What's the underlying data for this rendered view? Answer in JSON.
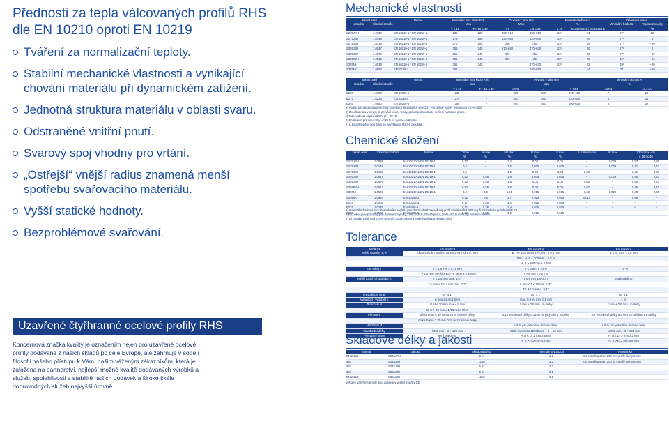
{
  "left": {
    "title_line1": "Přednosti za tepla válcovaných profilů RHS",
    "title_line2": "dle EN 10210 oproti EN 10219",
    "bullets": [
      "Tváření za normalizační teploty.",
      "Stabilní mechanické vlastnosti a vynikající chování materiálu při dynamickém zatížení.",
      "Jednotná struktura materiálu v oblasti svaru.",
      "Odstraněné vnitřní pnutí.",
      "Svarový spoj vhodný pro vrtání.",
      "„Ostřejší“ vnější radius znamená menší spotřebu svařovacího materiálu.",
      "Vyšší statické hodnoty.",
      "Bezproblémové svařování."
    ],
    "banner": "Uzavřené čtyřhranné ocelové profily RHS",
    "banner_text": "Koncernová značka kvality je označením nejen pro uzavřené ocelové profily dodávané z našich skladů po celé Evropě, ale zahrnuje v sobě i filosofii našeho přístupu k Vám, našim váženým zákazníkům, která je založena na partnerství, nejlepší možné kvalitě dodávaných výrobků a služeb, spolehlivosti a stabilitě našich dodávek a široké škále doprovodných služeb nejvyšší úrovně."
  },
  "mech": {
    "title": "Mechanické vlastnosti",
    "t1_head1": [
      "Jakost oceli",
      "Norma",
      "Minimální mez kluzu Reh",
      "Pevnost v tahu Rm",
      "Minimální tažnost A",
      "Nárazová práce"
    ],
    "t1_head2": [
      "Značka",
      "Číselné označení",
      "",
      "Mpa",
      "Mpa",
      "%",
      "Minimální hodnota",
      "Teplota zkoušky"
    ],
    "t1_head3": [
      "",
      "",
      "",
      "T ≤ 16",
      "T > 16 ≤ 40",
      "< 3",
      "≥ 3 ≤ 40",
      "≤ 40",
      "EN 10210-1 | EN 10219-1",
      "J",
      "°C"
    ],
    "t1_rows": [
      [
        "S235JRH",
        "1.0039",
        "EN 10210-1 / EN 10219-1",
        "235",
        "225",
        "360–510",
        "360–510",
        "26¹",
        "24",
        "27²",
        "20"
      ],
      [
        "S275J0H",
        "1.0149",
        "EN 10210-1 / EN 10219-1",
        "275",
        "265",
        "430–580",
        "410–560",
        "23¹",
        "20",
        "27²",
        "0"
      ],
      [
        "S275J2H",
        "1.0138",
        "EN 10210-1 / EN 10219-1",
        "275",
        "265",
        "dtto",
        "dtto",
        "23¹",
        "20",
        "27²",
        "−20"
      ],
      [
        "S355J0H",
        "1.0547",
        "EN 10210-1 / EN 10219-1",
        "355",
        "345",
        "510–680",
        "470–630",
        "22¹",
        "20",
        "27²",
        "0"
      ],
      [
        "S355J2H",
        "1.0576",
        "EN 10210-1 / EN 10219-1",
        "355",
        "345",
        "dtto",
        "dtto",
        "22¹",
        "20",
        "27²",
        "−20"
      ],
      [
        "S355K2H",
        "1.0512",
        "EN 10210-1 / EN 10219-1",
        "355",
        "345",
        "dtto",
        "dtto",
        "22¹",
        "20",
        "40²",
        "−20"
      ],
      [
        "S355NH",
        "1.0539",
        "EN 10210-1 / EN 10219-1",
        "355",
        "345",
        "",
        "470–630",
        "22¹",
        "22",
        "40²",
        "−20"
      ],
      [
        "S355MC",
        "1.0984",
        "EN10149-2",
        "355",
        "",
        "",
        "430–550",
        "",
        "14",
        "27",
        "−20"
      ]
    ],
    "t2_head1": [
      "Jakost oceli",
      "Norma",
      "Minimální mez kluzu Reh",
      "Pevnost v tahu Rm",
      "Minimální tažnost A"
    ],
    "t2_head2": [
      "Značka",
      "Číselné označení",
      "",
      "Mpa",
      "Mpa",
      "%"
    ],
    "t2_head3": [
      "",
      "",
      "",
      "T ≤ 16",
      "T > 16 ≤ 40",
      "≤CR1",
      "≤",
      "> CR1",
      "≤CR1",
      "≤A / ≤A"
    ],
    "t2_rows": [
      [
        "E235",
        "1.0308",
        "EN 10305-5",
        "235",
        "–",
        "390",
        "315",
        "340–480",
        "7",
        "25"
      ],
      [
        "E275",
        "1.0225",
        "EN10305-5",
        "275",
        "–",
        "440",
        "390",
        "410–550",
        "6",
        "21"
      ],
      [
        "E355",
        "1.0580",
        "EN 10305-5",
        "355",
        "–",
        "540",
        "490",
        "490–630",
        "5",
        "22"
      ]
    ],
    "notes": [
      "a) Platí pro hodnoty stanovené na podélných zkušebních vzorcích. Pro příčné vzorky je hodnota o 2 % nižší.",
      "b) Zkouška rázu v ohybu se provádí pouze tehdy, pokud je dohodnuto ověření nárazové práce.",
      "c) Tato hodnota odpovídá 27J při −30 °C.",
      "d) Podélné či příčné vzorky – záleží na výrobci materiálu.",
      "e) U tloušťky stěny pod 6mm se nevyžaduje rázová zkouška."
    ]
  },
  "chem": {
    "title": "Chemické složení",
    "head": [
      "Jakost oceli",
      "Číselné označení",
      "Norma",
      "C max",
      "Si max",
      "Mn max",
      "P max",
      "S max",
      "Al celkem min",
      "N² max",
      "CEV max = %"
    ],
    "head2": [
      "",
      "",
      "",
      "%",
      "%",
      "%",
      "%",
      "%",
      "",
      "",
      "≤ 16 | ≤ 40"
    ],
    "rows": [
      [
        "S235JRH",
        "1.0039",
        "EN 10210-1/EN 10219-1",
        "0,17",
        "–",
        "1,4",
        "0,04",
        "0,04",
        "–",
        "0,009",
        "0,37",
        "0,39"
      ],
      [
        "S275J0H",
        "1.0149",
        "EN 10210-1/EN 10219-1",
        "0,2",
        "–",
        "1,5",
        "0,035",
        "0,035",
        "–",
        "0,009",
        "0,41",
        "0,43"
      ],
      [
        "S275J2H",
        "1.0138",
        "EN 10210-1/EN 10219-1",
        "0,2",
        "–",
        "1,5",
        "0,03",
        "0,03",
        "0,02",
        "–",
        "0,41",
        "0,43"
      ],
      [
        "S355J0H",
        "1.0547",
        "EN 10210-1/EN 10219-1",
        "0,22",
        "0,55",
        "1,6",
        "0,035",
        "0,035",
        "–",
        "0,009",
        "0,45",
        "0,47"
      ],
      [
        "S355J2H",
        "1.0576",
        "EN 10210-1/EN 10219-1",
        "0,22",
        "0,55",
        "1,6",
        "0,03",
        "0,03",
        "0,02",
        "–",
        "0,45",
        "0,47"
      ],
      [
        "S355K2H",
        "1.0512",
        "EN 10210-1/EN 10219-1",
        "0,22",
        "0,55",
        "1,6",
        "0,03",
        "0,03",
        "0,02",
        "–",
        "0,45",
        "0,47"
      ],
      [
        "S355NH",
        "1.0539",
        "EN 10210-1/EN 10219-1",
        "0,2",
        "0,5",
        "1,65",
        "0,015",
        "0,015",
        "0,02",
        "0,020",
        "0,43",
        "0,45"
      ],
      [
        "S355MC",
        "1.0984",
        "EN 10149-2",
        "0,12",
        "0,5",
        "1,7",
        "0,025",
        "0,025",
        "0,015",
        "–",
        "0,49",
        "–"
      ],
      [
        "E235",
        "1.0308",
        "EN 10305-5",
        "0,17",
        "0,35",
        "1,2",
        "0,025",
        "0,025",
        "–",
        "–",
        "–",
        "–"
      ],
      [
        "E275",
        "1.0225",
        "EN10305-5",
        "0,21",
        "0,35",
        "1,4",
        "0,025",
        "0,025",
        "–",
        "–",
        "–",
        "–"
      ],
      [
        "E355",
        "1.0580",
        "EN 10305-5",
        "0,22",
        "0,55",
        "1,6",
        "0,025",
        "0,025",
        "–",
        "–",
        "–",
        "–"
      ]
    ],
    "notes": [
      "a) maximální hodnota pro obsah dusíku neplatí, pokud ocel obsahuje celkový podíl Al minimálně 0,02 % při minimálním poměru Al/N 2:1",
      "nebo pokud jsou přítomny jiné dostatečné prvky, které váží N. Obsah prvků, které váží N musí být uveden v atestu.",
      "b) při obsahu mědi nad 0,3 % musí být obsah niklu minimálně polovina obsahu mědi"
    ]
  },
  "tol": {
    "title": "Tolerance",
    "head": [
      "Tolerance",
      "EN 10305-5",
      "EN 10219-2",
      "EN 10210-2"
    ],
    "rows": [
      [
        "Vnější rozměry B, H",
        "tolerance dle rozměru od ± 0,2 mm až ± 0,7mm",
        "B, H < 100 mm  ± 1 %, min. ± 0,5 mm",
        "± 1 %, min. ± 0,5 mm"
      ],
      [
        "",
        "",
        "100 ≤ H, B ≤ 200 mm  ± 0,8 %",
        ""
      ],
      [
        "",
        "",
        "H, B > 200 mm  ± 0,6 %",
        ""
      ],
      [
        "Síla stěny T",
        "T ≤ 1,5 mm  ± 0,15 mm",
        "T ≤ 5 mm  ± 10 %",
        "- 10 %"
      ],
      [
        "",
        "T > 1,5 mm  menší z ±10 %, nebo ± 0,35mm",
        "T > 5 mm  ± 0,5 mm",
        ""
      ],
      [
        "Vnější rozdíl rohu ohybu R",
        "T ≤ 2,5 mm  max. 1,5T",
        "T ≤ 6 mm  1,6–2,4T",
        "maximálně 3T"
      ],
      [
        "",
        "2,5 mm < T ≤ 4 mm  max. 2,2T",
        "6 mm < T ≤ 10 mm  2–3T",
        ""
      ],
      [
        "",
        "",
        "T > 10 mm  2,4–3,6T",
        ""
      ],
      [
        "Pravoúhlost stran",
        "90° ± 1°",
        "90° ± 1°",
        "90° ± 1°"
      ],
      [
        "Vypuklost / vydutost x",
        "je součástí rozměrů",
        "max. 0,8 %, min. 0,5 mm",
        "1 %"
      ],
      [
        "Zkroucení V",
        "B, H ≤ 30 mm  max ± 5 mm",
        "2 mm + 0,5 mm / m délky",
        "2 mm + 0,5 mm / m délky"
      ],
      [
        "",
        "B, H > 30 mm  ± B/10 nebo H/10",
        "",
        ""
      ],
      [
        "Přímost e",
        "délka tímto ≤ 30 mm  0,25 % celkové délky",
        "0,15 % celkové délky a 3 mm na jakýkoliv 1 m délky",
        "0,2 % celkové délky a 3 mm na každém 1 m délky"
      ],
      [
        "",
        "délka zlomu > 30 mm  0,15 % z celkové délky",
        "",
        ""
      ],
      [
        "Hmotnost M",
        "",
        "± 6 % pro jednotlivé dodané délky",
        "± 6 % pro jednotlivé dodané délky"
      ],
      [
        "Standardní délky",
        "6000 mm – 0 + 100 mm",
        "6000 mm nebo 12000 mm – 0 + 50 mm",
        "12000 mm – 0 + 500 mm"
      ],
      [
        "Přesyčení hrany",
        "není omezeno",
        "H, B ≤ 14,2 mm  3,5 mm",
        "H, B ≤ 14,2 mm  3,2 mm"
      ],
      [
        "",
        "",
        "H, B >14,2 mm  4,8 mm",
        "H, B >14,2 mm  4,8 mm"
      ]
    ]
  },
  "sklad": {
    "title": "Skladové délky a jakosti",
    "head": [
      "Norma",
      "Jakost",
      "Skladová délka",
      "Atest dle EN 10204",
      "Poznámka"
    ],
    "rows": [
      [
        "EN10219",
        "S235JRH",
        "6 m",
        "2.2",
        "Od rozměru stran 200 mm a síly stěny 6 mm"
      ],
      [
        "dtto",
        "S355J2H",
        "12 m",
        "2.2",
        "Od rozměru stran 200 mm a síly stěny 6 mm"
      ],
      [
        "dtto",
        "S275J0H",
        "6 m",
        "2.2",
        ""
      ],
      [
        "dtto",
        "S355J2H",
        "6 m",
        "3.1",
        ""
      ],
      [
        "EN10210",
        "S355J2H",
        "12 m",
        "3.1",
        "–"
      ]
    ],
    "note": "Veškeré uzavřené profily jsou dodávány včetně značky CE"
  }
}
